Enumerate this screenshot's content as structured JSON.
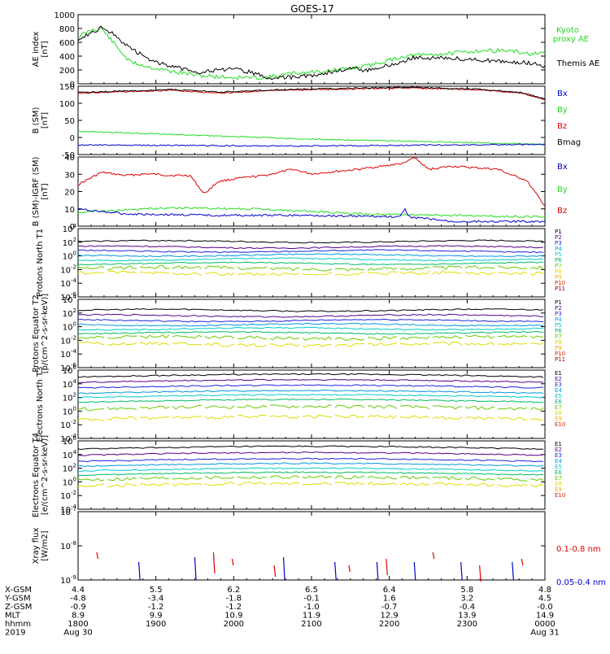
{
  "title": "GOES-17",
  "colors": {
    "black": "#000000",
    "green": "#22dd22",
    "red": "#dd0000",
    "blue": "#0000cc",
    "darkred": "#880000",
    "purple": "#7700aa",
    "ch_colors": [
      "#000000",
      "#550088",
      "#2222dd",
      "#0099dd",
      "#00cccc",
      "#00bb66",
      "#66cc00",
      "#dddd00",
      "#ffaa00",
      "#dd2200",
      "#990000"
    ]
  },
  "footer": {
    "rows": [
      {
        "label": "X-GSM",
        "values": [
          "4.4",
          "5.5",
          "6.2",
          "6.5",
          "6.4",
          "5.8",
          "4.8"
        ]
      },
      {
        "label": "Y-GSM",
        "values": [
          "-4.8",
          "-3.4",
          "-1.8",
          "-0.1",
          "1.6",
          "3.2",
          "4.5"
        ]
      },
      {
        "label": "Z-GSM",
        "values": [
          "-0.9",
          "-1.2",
          "-1.2",
          "-1.0",
          "-0.7",
          "-0.4",
          "-0.0"
        ]
      },
      {
        "label": "MLT",
        "values": [
          "8.9",
          "9.9",
          "10.9",
          "11.9",
          "12.9",
          "13.9",
          "14.9"
        ]
      },
      {
        "label": "hhmm",
        "values": [
          "1800",
          "1900",
          "2000",
          "2100",
          "2200",
          "2300",
          "0000"
        ]
      },
      {
        "label": "2019",
        "values": [
          "Aug 30",
          "",
          "",
          "",
          "",
          "",
          "Aug 31"
        ]
      }
    ]
  },
  "chart_data": [
    {
      "type": "line",
      "ylabel": "AE index [nT]",
      "ylim": [
        0,
        1000
      ],
      "yticks": [
        "1000",
        "800",
        "600",
        "400",
        "200",
        "0"
      ],
      "series": [
        {
          "name": "Kyoto proxy AE",
          "color": "#22dd22",
          "x": [
            0,
            0.03,
            0.05,
            0.08,
            0.11,
            0.16,
            0.2,
            0.26,
            0.33,
            0.4,
            0.46,
            0.52,
            0.58,
            0.62,
            0.7,
            0.8,
            0.86,
            0.92,
            0.97,
            1
          ],
          "y": [
            680,
            780,
            800,
            560,
            320,
            230,
            180,
            120,
            90,
            90,
            150,
            180,
            220,
            260,
            400,
            440,
            480,
            480,
            430,
            430
          ]
        },
        {
          "name": "Themis AE",
          "color": "#000000",
          "x": [
            0,
            0.03,
            0.05,
            0.08,
            0.11,
            0.16,
            0.2,
            0.26,
            0.33,
            0.37,
            0.41,
            0.47,
            0.52,
            0.58,
            0.62,
            0.68,
            0.72,
            0.8,
            0.86,
            0.92,
            0.97,
            1
          ],
          "y": [
            650,
            740,
            820,
            700,
            520,
            330,
            250,
            170,
            210,
            170,
            80,
            100,
            140,
            220,
            190,
            290,
            380,
            370,
            340,
            320,
            300,
            250
          ]
        }
      ],
      "legend": [
        "Kyoto proxy AE",
        "Themis AE"
      ]
    },
    {
      "type": "line",
      "ylabel": "B (SM) [nT]",
      "ylim": [
        -50,
        150
      ],
      "yticks": [
        "150",
        "100",
        "50",
        "0",
        "-50"
      ],
      "series": [
        {
          "name": "Bz",
          "color": "#dd0000",
          "x": [
            0,
            0.2,
            0.3,
            0.4,
            0.5,
            0.7,
            0.85,
            0.95,
            1
          ],
          "y": [
            130,
            138,
            130,
            136,
            140,
            145,
            140,
            130,
            110
          ]
        },
        {
          "name": "Bmag",
          "color": "#000000",
          "x": [
            0,
            0.2,
            0.3,
            0.4,
            0.5,
            0.7,
            0.85,
            0.95,
            1
          ],
          "y": [
            132,
            140,
            133,
            138,
            142,
            147,
            142,
            132,
            112
          ]
        },
        {
          "name": "By",
          "color": "#22dd22",
          "x": [
            0,
            0.5,
            1
          ],
          "y": [
            18,
            -5,
            -20
          ]
        },
        {
          "name": "Bx",
          "color": "#0000cc",
          "x": [
            0,
            0.5,
            1
          ],
          "y": [
            -22,
            -25,
            -20
          ]
        }
      ],
      "legend": [
        "Bx",
        "By",
        "Bz",
        "Bmag"
      ]
    },
    {
      "type": "line",
      "ylabel": "B (SM)-IGRF (SM) [nT]",
      "ylim": [
        -5,
        40
      ],
      "yticks": [
        "40",
        "30",
        "20",
        "10",
        "0"
      ],
      "series": [
        {
          "name": "Bz",
          "color": "#dd0000",
          "x": [
            0,
            0.05,
            0.1,
            0.15,
            0.2,
            0.24,
            0.27,
            0.3,
            0.34,
            0.4,
            0.46,
            0.5,
            0.6,
            0.7,
            0.72,
            0.75,
            0.8,
            0.9,
            0.93,
            0.96,
            1
          ],
          "y": [
            22,
            30,
            28,
            29,
            28,
            28,
            16,
            24,
            26,
            28,
            32,
            29,
            32,
            36,
            40,
            32,
            34,
            32,
            28,
            25,
            8
          ]
        },
        {
          "name": "By",
          "color": "#22dd22",
          "x": [
            0,
            0.2,
            0.4,
            0.6,
            0.8,
            1
          ],
          "y": [
            4,
            7,
            6,
            3,
            2,
            1
          ]
        },
        {
          "name": "Bx",
          "color": "#0000cc",
          "x": [
            0,
            0.1,
            0.3,
            0.5,
            0.69,
            0.7,
            0.71,
            0.8,
            1
          ],
          "y": [
            6,
            3,
            2,
            2,
            1,
            6,
            1,
            -2,
            -2
          ]
        }
      ],
      "legend": [
        "Bx",
        "By",
        "Bz"
      ]
    },
    {
      "type": "line",
      "ylabel": "Protons North T1",
      "ylim_exp": [
        -6,
        4
      ],
      "yticks": [
        "10^4",
        "10^2",
        "10^0",
        "10^-2",
        "10^-4",
        "10^-6"
      ],
      "channel_levels": [
        2.1,
        1.3,
        0.7,
        0.1,
        -0.5,
        -1.1,
        -1.8,
        -2.6
      ],
      "legend": [
        "P1",
        "P2",
        "P3",
        "P4",
        "P5",
        "P6",
        "P7",
        "P8",
        "P9",
        "P10",
        "P11"
      ]
    },
    {
      "type": "line",
      "ylabel": "Protons Equator T2 [p/(cm^2-s-sr-keV)]",
      "ylim_exp": [
        -6,
        4
      ],
      "yticks": [
        "10^4",
        "10^2",
        "10^0",
        "10^-2",
        "10^-4",
        "10^-6"
      ],
      "channel_levels": [
        2.4,
        1.6,
        0.9,
        0.3,
        -0.3,
        -0.9,
        -1.6,
        -2.6
      ],
      "legend": [
        "P1",
        "P2",
        "P3",
        "P4",
        "P5",
        "P6",
        "P7",
        "P8",
        "P9",
        "P10",
        "P11"
      ]
    },
    {
      "type": "line",
      "ylabel": "Electrons North T3",
      "ylim_exp": [
        -4,
        6
      ],
      "yticks": [
        "10^6",
        "10^4",
        "10^2",
        "10^0",
        "10^-2",
        "10^-4"
      ],
      "channel_levels": [
        5.0,
        4.2,
        3.4,
        2.6,
        2.0,
        1.3,
        0.3,
        -1.2
      ],
      "legend": [
        "E1",
        "E2",
        "E3",
        "E4",
        "E5",
        "E6",
        "E7",
        "E8",
        "E9",
        "E10"
      ]
    },
    {
      "type": "line",
      "ylabel": "Electrons Equator T4 [e/(cm^2-s-sr-keV)]",
      "ylim_exp": [
        -4,
        6
      ],
      "yticks": [
        "10^6",
        "10^4",
        "10^2",
        "10^0",
        "10^-2",
        "10^-4"
      ],
      "channel_levels": [
        4.8,
        3.9,
        3.0,
        2.3,
        1.6,
        1.0,
        0.3,
        -0.6
      ],
      "legend": [
        "E1",
        "E2",
        "E3",
        "E4",
        "E5",
        "E6",
        "E7",
        "E8",
        "E9",
        "E10"
      ]
    },
    {
      "type": "scatter",
      "ylabel": "Xray flux [W/m2]",
      "ylim_exp": [
        -9,
        -7
      ],
      "yticks": [
        "10^-7",
        "10^-8",
        "10^-9"
      ],
      "legend": [
        "0.1-0.8 nm",
        "0.05-0.4 nm"
      ]
    }
  ],
  "axis": {
    "xticks": [
      "1800",
      "1900",
      "2000",
      "2100",
      "2200",
      "2300",
      "0000"
    ]
  }
}
